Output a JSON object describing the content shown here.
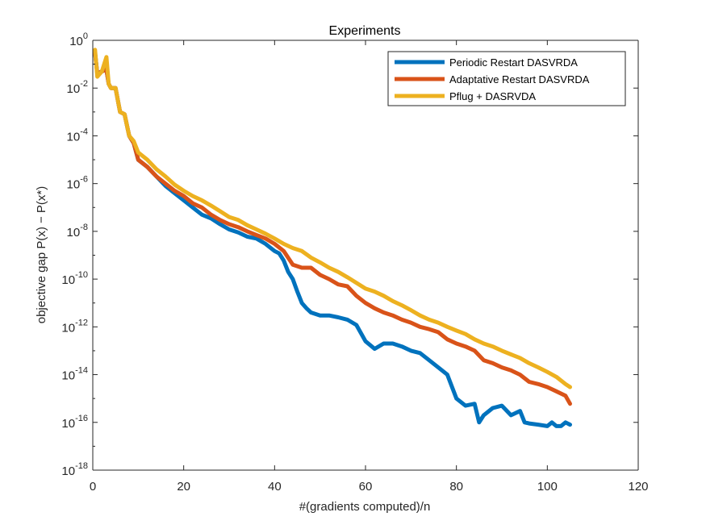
{
  "chart_data": {
    "type": "line",
    "title": "Experiments",
    "xlabel": "#(gradients computed)/n",
    "ylabel": "objective gap P(x) − P(x*)",
    "xlim": [
      0,
      120
    ],
    "ylim": [
      1e-18,
      1
    ],
    "yscale": "log",
    "x_ticks": [
      "0",
      "20",
      "40",
      "60",
      "80",
      "100",
      "120"
    ],
    "y_ticks": [
      {
        "base": "10",
        "exp": "-18"
      },
      {
        "base": "10",
        "exp": "-16"
      },
      {
        "base": "10",
        "exp": "-14"
      },
      {
        "base": "10",
        "exp": "-12"
      },
      {
        "base": "10",
        "exp": "-10"
      },
      {
        "base": "10",
        "exp": "-8"
      },
      {
        "base": "10",
        "exp": "-6"
      },
      {
        "base": "10",
        "exp": "-4"
      },
      {
        "base": "10",
        "exp": "-2"
      },
      {
        "base": "10",
        "exp": "0"
      }
    ],
    "grid": false,
    "legend_position": "top-right",
    "series": [
      {
        "name": "Periodic Restart DASVRDA",
        "color": "#0072BD",
        "x": [
          0.5,
          1,
          2,
          3,
          3.5,
          4,
          5,
          6,
          7,
          8,
          9,
          10,
          12,
          14,
          16,
          18,
          20,
          22,
          24,
          26,
          28,
          30,
          32,
          34,
          36,
          38,
          40,
          41,
          42,
          43,
          44,
          45,
          46,
          47,
          48,
          50,
          52,
          54,
          56,
          58,
          60,
          62,
          64,
          66,
          68,
          70,
          72,
          74,
          76,
          78,
          80,
          82,
          84,
          85,
          86,
          88,
          90,
          92,
          94,
          95,
          96,
          98,
          100,
          101,
          102,
          103,
          104,
          105
        ],
        "y": [
          0.3,
          0.04,
          0.05,
          0.06,
          0.015,
          0.01,
          0.01,
          0.001,
          0.0008,
          0.0001,
          5e-05,
          1e-05,
          5e-06,
          2e-06,
          8e-07,
          4e-07,
          2e-07,
          1e-07,
          5e-08,
          3.5e-08,
          2e-08,
          1.2e-08,
          9e-09,
          6e-09,
          5e-09,
          3e-09,
          1.5e-09,
          1.2e-09,
          6e-10,
          2e-10,
          1e-10,
          3e-11,
          1e-11,
          6e-12,
          4e-12,
          3e-12,
          3e-12,
          2.5e-12,
          2e-12,
          1.2e-12,
          2.5e-13,
          1.2e-13,
          2e-13,
          2e-13,
          1.5e-13,
          1e-13,
          8e-14,
          4e-14,
          2e-14,
          1e-14,
          1e-15,
          5e-16,
          6e-16,
          1e-16,
          2e-16,
          4e-16,
          5e-16,
          2e-16,
          3e-16,
          1e-16,
          9e-17,
          8e-17,
          7e-17,
          1e-16,
          7e-17,
          7e-17,
          1e-16,
          8e-17
        ]
      },
      {
        "name": "Adaptative Restart DASVRDA",
        "color": "#D95319",
        "x": [
          0.5,
          1,
          2,
          3,
          3.5,
          4,
          5,
          6,
          7,
          8,
          9,
          10,
          12,
          14,
          16,
          18,
          20,
          22,
          24,
          26,
          28,
          30,
          32,
          34,
          36,
          38,
          40,
          42,
          44,
          46,
          48,
          50,
          52,
          54,
          56,
          58,
          60,
          62,
          64,
          66,
          68,
          70,
          72,
          74,
          76,
          78,
          80,
          82,
          84,
          86,
          88,
          90,
          92,
          94,
          96,
          98,
          100,
          102,
          104,
          105
        ],
        "y": [
          0.3,
          0.04,
          0.05,
          0.06,
          0.015,
          0.01,
          0.01,
          0.001,
          0.0008,
          0.0001,
          5e-05,
          1e-05,
          5e-06,
          2e-06,
          1e-06,
          5e-07,
          3e-07,
          1.5e-07,
          1e-07,
          5e-08,
          3e-08,
          2e-08,
          1.5e-08,
          1e-08,
          7e-09,
          5e-09,
          3e-09,
          1.5e-09,
          4e-10,
          3e-10,
          3e-10,
          1.5e-10,
          1e-10,
          6e-11,
          5e-11,
          2e-11,
          1e-11,
          6e-12,
          4e-12,
          3e-12,
          2e-12,
          1.5e-12,
          1e-12,
          8e-13,
          6e-13,
          3e-13,
          2e-13,
          1.5e-13,
          1e-13,
          4e-14,
          3e-14,
          2e-14,
          1.5e-14,
          1e-14,
          5e-15,
          4e-15,
          3e-15,
          2e-15,
          1.3e-15,
          6e-16
        ]
      },
      {
        "name": "Pflug + DASRVDA",
        "color": "#EDB120",
        "x": [
          0.5,
          1,
          2,
          3,
          3.5,
          4,
          5,
          6,
          7,
          8,
          9,
          10,
          12,
          14,
          16,
          18,
          20,
          22,
          24,
          26,
          28,
          30,
          32,
          34,
          36,
          38,
          40,
          42,
          44,
          46,
          48,
          50,
          52,
          54,
          56,
          58,
          60,
          62,
          64,
          66,
          68,
          70,
          72,
          74,
          76,
          78,
          80,
          82,
          84,
          86,
          88,
          90,
          92,
          94,
          96,
          98,
          100,
          102,
          104,
          105
        ],
        "y": [
          0.4,
          0.03,
          0.05,
          0.2,
          0.015,
          0.01,
          0.01,
          0.001,
          0.0008,
          0.0001,
          6e-05,
          2e-05,
          1e-05,
          4e-06,
          2e-06,
          9e-07,
          5e-07,
          3e-07,
          2e-07,
          1.2e-07,
          7e-08,
          4e-08,
          3e-08,
          1.8e-08,
          1.2e-08,
          8e-09,
          5e-09,
          3e-09,
          2e-09,
          1.5e-09,
          8e-10,
          5e-10,
          3e-10,
          2e-10,
          1.2e-10,
          7e-11,
          4e-11,
          3e-11,
          2e-11,
          1.2e-11,
          8e-12,
          5e-12,
          3e-12,
          2e-12,
          1.5e-12,
          1e-12,
          7e-13,
          5e-13,
          3e-13,
          2e-13,
          1.5e-13,
          1e-13,
          7e-14,
          5e-14,
          3e-14,
          2e-14,
          1.3e-14,
          8e-15,
          4e-15,
          3e-15
        ]
      }
    ]
  }
}
